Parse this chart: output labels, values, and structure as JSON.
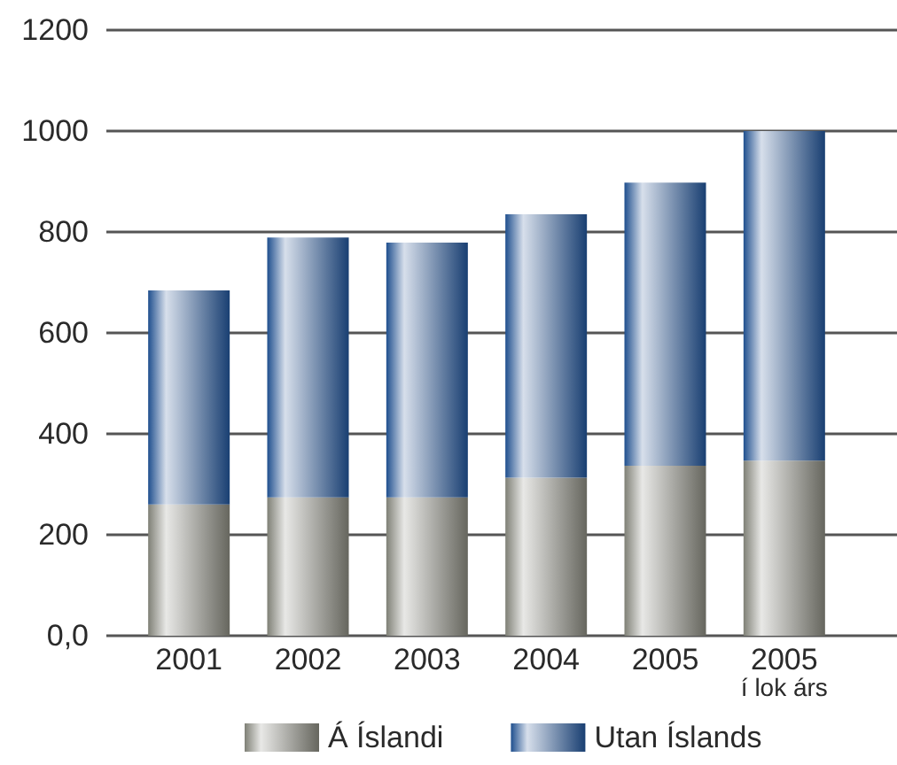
{
  "chart_data": {
    "type": "bar",
    "stacked": true,
    "categories": [
      "2001",
      "2002",
      "2003",
      "2004",
      "2005",
      "2005\ní lok árs"
    ],
    "series": [
      {
        "name": "Á Íslandi",
        "color": "#7f8076",
        "values": [
          260,
          274,
          274,
          313,
          337,
          347
        ]
      },
      {
        "name": "Utan Íslands",
        "color": "#1f4f8e",
        "values": [
          424,
          515,
          505,
          522,
          561,
          653
        ]
      }
    ],
    "ylim": [
      0,
      1200
    ],
    "yticks": [
      {
        "value": 0,
        "label": "0,0"
      },
      200,
      400,
      600,
      800,
      1000,
      1200
    ],
    "grid": "y",
    "legend": "bottom"
  }
}
